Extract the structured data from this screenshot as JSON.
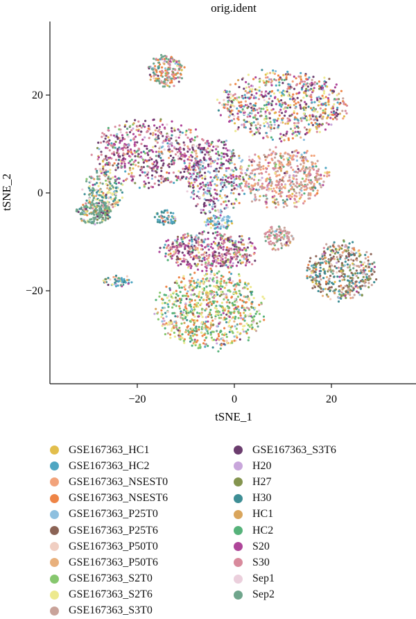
{
  "chart_data": {
    "type": "scatter",
    "title": "orig.ident",
    "xlabel": "tSNE_1",
    "ylabel": "tSNE_2",
    "xlim": [
      -37,
      37
    ],
    "ylim": [
      -39,
      33
    ],
    "xticks": [
      -20,
      0,
      20
    ],
    "yticks": [
      -20,
      0,
      20
    ],
    "xtick_labels": [
      "−20",
      "0",
      "20"
    ],
    "ytick_labels": [
      "−20",
      "0",
      "20"
    ],
    "grid": false,
    "legend_position": "bottom",
    "series": [
      {
        "name": "GSE167363_HC1",
        "color": "#E2BE4C"
      },
      {
        "name": "GSE167363_HC2",
        "color": "#4FA6C2"
      },
      {
        "name": "GSE167363_NSEST0",
        "color": "#F2A37B"
      },
      {
        "name": "GSE167363_NSEST6",
        "color": "#EE8446"
      },
      {
        "name": "GSE167363_P25T0",
        "color": "#8EC0DF"
      },
      {
        "name": "GSE167363_P25T6",
        "color": "#8B6355"
      },
      {
        "name": "GSE167363_P50T0",
        "color": "#F0CEC2"
      },
      {
        "name": "GSE167363_P50T6",
        "color": "#E8B07C"
      },
      {
        "name": "GSE167363_S2T0",
        "color": "#86C76E"
      },
      {
        "name": "GSE167363_S2T6",
        "color": "#EDE98E"
      },
      {
        "name": "GSE167363_S3T0",
        "color": "#C9A39A"
      },
      {
        "name": "GSE167363_S3T6",
        "color": "#6B3D6E"
      },
      {
        "name": "H20",
        "color": "#C8A6DB"
      },
      {
        "name": "H27",
        "color": "#84944F"
      },
      {
        "name": "H30",
        "color": "#3E8E95"
      },
      {
        "name": "HC1",
        "color": "#D9A55C"
      },
      {
        "name": "HC2",
        "color": "#56B27A"
      },
      {
        "name": "S20",
        "color": "#AE4599"
      },
      {
        "name": "S30",
        "color": "#D88A9C"
      },
      {
        "name": "Sep1",
        "color": "#EBCFDC"
      },
      {
        "name": "Sep2",
        "color": "#6FA58C"
      }
    ],
    "clusters": [
      {
        "center": [
          -14,
          25
        ],
        "spread": [
          3.6,
          3.2
        ],
        "weight": 0.035,
        "dominant": [
          "Sep2",
          "GSE167363_NSEST6",
          "S30"
        ]
      },
      {
        "center": [
          10,
          18
        ],
        "spread": [
          13,
          7
        ],
        "weight": 0.14,
        "dominant": [
          "S20",
          "S30",
          "GSE167363_NSEST6",
          "GSE167363_S3T6",
          "GSE167363_S2T6",
          "GSE167363_HC2"
        ]
      },
      {
        "center": [
          -17,
          8
        ],
        "spread": [
          12,
          7
        ],
        "weight": 0.12,
        "dominant": [
          "S20",
          "S30",
          "GSE167363_S3T6"
        ]
      },
      {
        "center": [
          -27,
          0
        ],
        "spread": [
          4,
          5
        ],
        "weight": 0.04,
        "dominant": [
          "Sep2",
          "H30",
          "GSE167363_S2T6"
        ]
      },
      {
        "center": [
          -29,
          -4
        ],
        "spread": [
          3.5,
          2.5
        ],
        "weight": 0.03,
        "dominant": [
          "Sep2"
        ]
      },
      {
        "center": [
          -4,
          3
        ],
        "spread": [
          6,
          8
        ],
        "weight": 0.07,
        "dominant": [
          "S20",
          "GSE167363_S3T6",
          "GSE167363_P25T0"
        ]
      },
      {
        "center": [
          10,
          3
        ],
        "spread": [
          9,
          6
        ],
        "weight": 0.1,
        "dominant": [
          "S30",
          "GSE167363_S3T0",
          "GSE167363_NSEST0"
        ]
      },
      {
        "center": [
          -5,
          -12
        ],
        "spread": [
          10,
          4
        ],
        "weight": 0.09,
        "dominant": [
          "S30",
          "S20",
          "GSE167363_S3T6"
        ]
      },
      {
        "center": [
          -5,
          -24
        ],
        "spread": [
          11,
          8
        ],
        "weight": 0.15,
        "dominant": [
          "GSE167363_S2T0",
          "HC2",
          "GSE167363_NSEST6",
          "GSE167363_S2T6"
        ]
      },
      {
        "center": [
          22,
          -16
        ],
        "spread": [
          7,
          6
        ],
        "weight": 0.09,
        "dominant": [
          "H30",
          "GSE167363_P25T6",
          "H27",
          "GSE167363_S3T0"
        ]
      },
      {
        "center": [
          9,
          -9
        ],
        "spread": [
          3,
          2.5
        ],
        "weight": 0.02,
        "dominant": [
          "GSE167363_S3T0",
          "S30"
        ]
      },
      {
        "center": [
          -14,
          -5
        ],
        "spread": [
          2.5,
          1.5
        ],
        "weight": 0.012,
        "dominant": [
          "H30",
          "GSE167363_HC2"
        ]
      },
      {
        "center": [
          -24,
          -18
        ],
        "spread": [
          3,
          1.2
        ],
        "weight": 0.01,
        "dominant": [
          "GSE167363_HC2",
          "H30"
        ]
      },
      {
        "center": [
          -3,
          -6
        ],
        "spread": [
          3,
          1.5
        ],
        "weight": 0.015,
        "dominant": [
          "GSE167363_HC2",
          "GSE167363_P25T0"
        ]
      }
    ]
  }
}
